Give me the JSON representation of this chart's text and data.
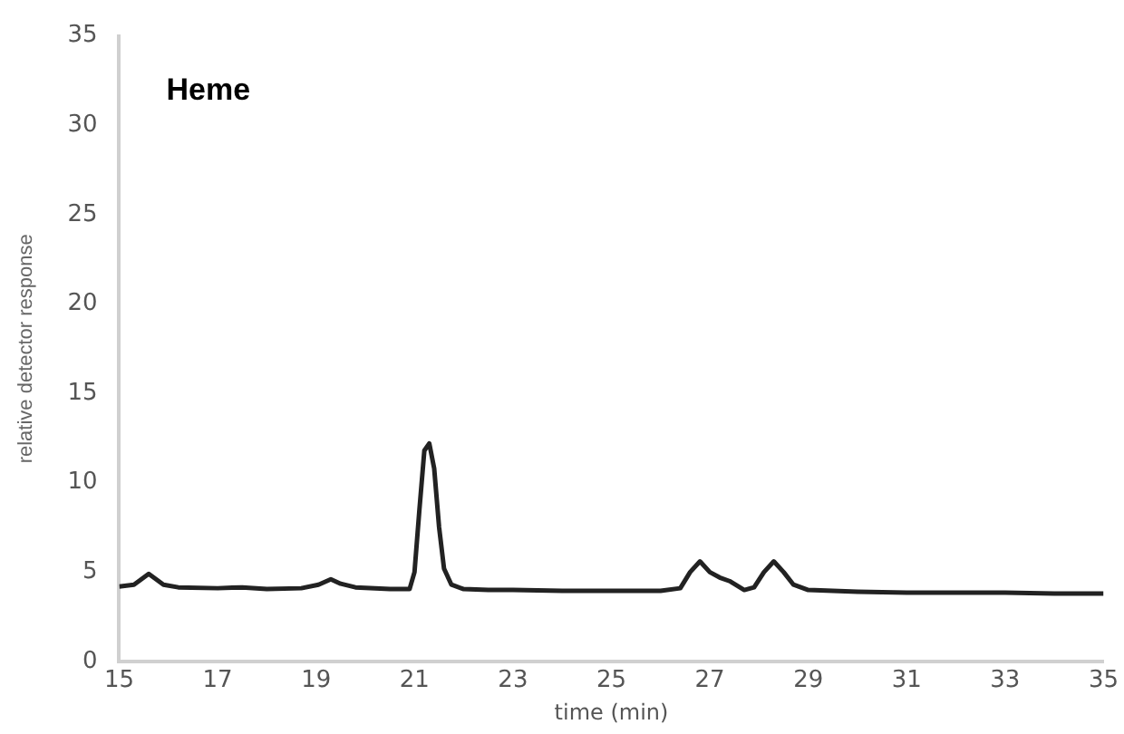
{
  "chart_data": {
    "type": "line",
    "title": "Heme",
    "xlabel": "time (min)",
    "ylabel": "relative detector response",
    "x": [
      15,
      15.3,
      15.45,
      15.6,
      15.75,
      15.9,
      16.2,
      17,
      17.5,
      18,
      18.7,
      19.05,
      19.3,
      19.5,
      19.8,
      20.5,
      20.9,
      21.0,
      21.1,
      21.2,
      21.3,
      21.4,
      21.5,
      21.6,
      21.75,
      22,
      22.5,
      23,
      24,
      25,
      26,
      26.4,
      26.6,
      26.8,
      27.0,
      27.2,
      27.4,
      27.7,
      27.9,
      28.1,
      28.3,
      28.5,
      28.7,
      29,
      29.5,
      30,
      31,
      32,
      33,
      34,
      35
    ],
    "series": [
      {
        "color": "#222222",
        "values": [
          4.2,
          4.3,
          4.6,
          4.9,
          4.6,
          4.3,
          4.15,
          4.1,
          4.15,
          4.05,
          4.1,
          4.3,
          4.6,
          4.35,
          4.15,
          4.05,
          4.05,
          5.0,
          8.5,
          11.8,
          12.2,
          10.8,
          7.5,
          5.2,
          4.3,
          4.05,
          4.0,
          4.0,
          3.95,
          3.95,
          3.95,
          4.1,
          5.0,
          5.6,
          5.0,
          4.7,
          4.5,
          4.0,
          4.15,
          5.0,
          5.6,
          5.0,
          4.3,
          4.0,
          3.95,
          3.9,
          3.85,
          3.85,
          3.85,
          3.8,
          3.8
        ]
      }
    ],
    "xlim": [
      15,
      35
    ],
    "xticks": [
      15,
      17,
      19,
      21,
      23,
      25,
      27,
      29,
      31,
      33,
      35
    ],
    "ylim": [
      0,
      35
    ],
    "yticks": [
      0,
      5,
      10,
      15,
      20,
      25,
      30,
      35
    ],
    "grid": false,
    "legend": false,
    "marker": "none",
    "line_style": "solid"
  }
}
